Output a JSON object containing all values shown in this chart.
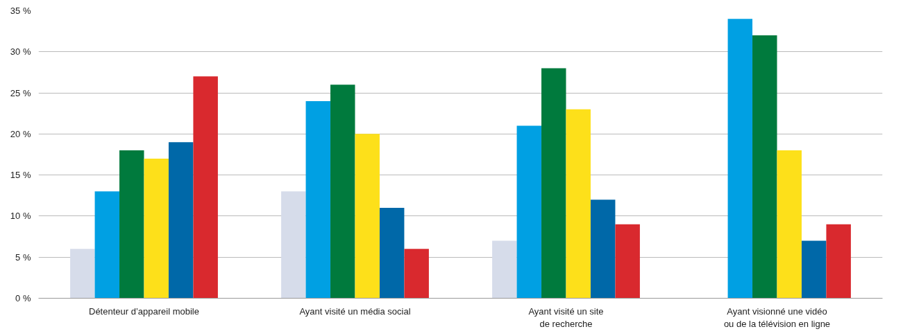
{
  "chart_data": {
    "type": "bar",
    "categories": [
      "Détenteur d’appareil mobile",
      "Ayant visité un média social",
      "Ayant visité un site\nde recherche",
      "Ayant visionné une vidéo\nou de la télévision en ligne"
    ],
    "series": [
      {
        "color": "#d6dcea",
        "values": [
          6,
          13,
          7,
          null
        ]
      },
      {
        "color": "#00a0e3",
        "values": [
          13,
          24,
          21,
          34
        ]
      },
      {
        "color": "#007a3d",
        "values": [
          18,
          26,
          28,
          32
        ]
      },
      {
        "color": "#fde01a",
        "values": [
          17,
          20,
          23,
          18
        ]
      },
      {
        "color": "#0068a8",
        "values": [
          19,
          11,
          12,
          7
        ]
      },
      {
        "color": "#d9292e",
        "values": [
          27,
          6,
          9,
          9
        ]
      }
    ],
    "ylim": [
      0,
      35
    ],
    "yticks": [
      {
        "value": 0,
        "label": "0 %"
      },
      {
        "value": 5,
        "label": "5 %"
      },
      {
        "value": 10,
        "label": "10 %"
      },
      {
        "value": 15,
        "label": "15 %"
      },
      {
        "value": 20,
        "label": "20 %"
      },
      {
        "value": 25,
        "label": "25 %"
      },
      {
        "value": 30,
        "label": "30 %"
      },
      {
        "value": 35,
        "label": "35 %"
      }
    ],
    "grid": "y"
  }
}
